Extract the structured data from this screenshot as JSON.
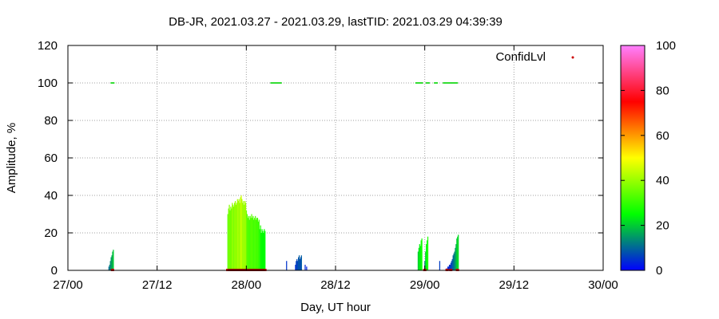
{
  "chart_data": {
    "type": "bar",
    "title": "DB-JR, 2021.03.27 - 2021.03.29, lastTID: 2021.03.29 04:39:39",
    "xlabel": "Day, UT hour",
    "ylabel": "Amplitude, %",
    "xlim": [
      0,
      72
    ],
    "ylim": [
      0,
      120
    ],
    "x_ticks": [
      {
        "value": 0,
        "label": "27/00"
      },
      {
        "value": 12,
        "label": "27/12"
      },
      {
        "value": 24,
        "label": "28/00"
      },
      {
        "value": 36,
        "label": "28/12"
      },
      {
        "value": 48,
        "label": "29/00"
      },
      {
        "value": 60,
        "label": "29/12"
      },
      {
        "value": 72,
        "label": "30/00"
      }
    ],
    "y_ticks": [
      0,
      20,
      40,
      60,
      80,
      100,
      120
    ],
    "grid": true,
    "legend": {
      "label": "ConfidLvl",
      "position": "top-right"
    },
    "colorbar": {
      "range": [
        0,
        100
      ],
      "ticks": [
        0,
        20,
        40,
        60,
        80,
        100
      ],
      "colors": [
        "#0000ff",
        "#00ff00",
        "#ffff00",
        "#ff0000",
        "#ff80ff"
      ]
    },
    "series": [
      {
        "type": "bar",
        "points": [
          [
            5.5,
            2
          ],
          [
            5.6,
            3
          ],
          [
            5.7,
            5
          ],
          [
            5.8,
            7
          ],
          [
            5.9,
            8
          ],
          [
            6.0,
            10
          ],
          [
            6.1,
            11
          ],
          [
            21.5,
            30
          ],
          [
            21.6,
            33
          ],
          [
            21.7,
            35
          ],
          [
            21.8,
            32
          ],
          [
            21.9,
            34
          ],
          [
            22.0,
            33
          ],
          [
            22.1,
            36
          ],
          [
            22.2,
            35
          ],
          [
            22.3,
            34
          ],
          [
            22.4,
            36
          ],
          [
            22.5,
            37
          ],
          [
            22.6,
            35
          ],
          [
            22.7,
            36
          ],
          [
            22.8,
            38
          ],
          [
            22.9,
            37
          ],
          [
            23.0,
            38
          ],
          [
            23.1,
            36
          ],
          [
            23.2,
            39
          ],
          [
            23.3,
            40
          ],
          [
            23.4,
            38
          ],
          [
            23.5,
            36
          ],
          [
            23.6,
            37
          ],
          [
            23.7,
            35
          ],
          [
            23.8,
            37
          ],
          [
            23.9,
            36
          ],
          [
            24.0,
            32
          ],
          [
            24.1,
            30
          ],
          [
            24.2,
            28
          ],
          [
            24.3,
            29
          ],
          [
            24.4,
            27
          ],
          [
            24.5,
            29
          ],
          [
            24.6,
            28
          ],
          [
            24.7,
            30
          ],
          [
            24.8,
            28
          ],
          [
            24.9,
            29
          ],
          [
            25.0,
            27
          ],
          [
            25.1,
            28
          ],
          [
            25.2,
            29
          ],
          [
            25.3,
            27
          ],
          [
            25.4,
            28
          ],
          [
            25.5,
            28
          ],
          [
            25.6,
            26
          ],
          [
            25.7,
            27
          ],
          [
            25.8,
            22
          ],
          [
            25.9,
            24
          ],
          [
            26.0,
            20
          ],
          [
            26.1,
            22
          ],
          [
            26.2,
            21
          ],
          [
            26.3,
            20
          ],
          [
            26.4,
            22
          ],
          [
            26.5,
            21
          ],
          [
            29.4,
            5
          ],
          [
            30.6,
            3
          ],
          [
            30.7,
            5
          ],
          [
            30.8,
            6
          ],
          [
            30.9,
            5
          ],
          [
            31.0,
            7
          ],
          [
            31.1,
            8
          ],
          [
            31.2,
            6
          ],
          [
            31.3,
            7
          ],
          [
            31.4,
            8
          ],
          [
            31.9,
            3
          ],
          [
            32.1,
            2
          ],
          [
            47.1,
            10
          ],
          [
            47.2,
            12
          ],
          [
            47.3,
            14
          ],
          [
            47.4,
            13
          ],
          [
            47.5,
            16
          ],
          [
            47.6,
            17
          ],
          [
            48.0,
            5
          ],
          [
            48.1,
            10
          ],
          [
            48.2,
            14
          ],
          [
            48.3,
            16
          ],
          [
            48.4,
            18
          ],
          [
            50.0,
            5
          ],
          [
            50.9,
            1
          ],
          [
            51.0,
            1
          ],
          [
            51.1,
            2
          ],
          [
            51.2,
            2
          ],
          [
            51.3,
            3
          ],
          [
            51.4,
            3
          ],
          [
            51.5,
            4
          ],
          [
            51.6,
            5
          ],
          [
            51.7,
            6
          ],
          [
            51.8,
            8
          ],
          [
            51.9,
            9
          ],
          [
            52.0,
            10
          ],
          [
            52.1,
            12
          ],
          [
            52.2,
            14
          ],
          [
            52.3,
            17
          ],
          [
            52.4,
            18
          ],
          [
            52.5,
            19
          ]
        ],
        "confidence": [
          10,
          12,
          14,
          15,
          16,
          18,
          20,
          34,
          36,
          38,
          35,
          37,
          36,
          40,
          38,
          37,
          39,
          40,
          38,
          39,
          42,
          40,
          41,
          39,
          43,
          45,
          42,
          40,
          41,
          39,
          41,
          40,
          36,
          34,
          32,
          33,
          31,
          33,
          32,
          34,
          32,
          33,
          31,
          32,
          33,
          31,
          32,
          32,
          30,
          31,
          26,
          28,
          24,
          26,
          25,
          24,
          26,
          25,
          5,
          4,
          6,
          7,
          6,
          8,
          9,
          7,
          8,
          9,
          4,
          3,
          20,
          22,
          24,
          23,
          26,
          27,
          12,
          20,
          24,
          26,
          28,
          6,
          3,
          3,
          4,
          4,
          5,
          5,
          6,
          7,
          8,
          10,
          11,
          13,
          15,
          17,
          20,
          21,
          22
        ]
      },
      {
        "type": "scatter",
        "name": "ConfidLvl",
        "points": [
          [
            6,
            100
          ],
          [
            27.5,
            100
          ],
          [
            28,
            100
          ],
          [
            28.5,
            100
          ],
          [
            47,
            100
          ],
          [
            47.5,
            100
          ],
          [
            48.4,
            100
          ],
          [
            49.5,
            100
          ],
          [
            50.7,
            100
          ],
          [
            51.0,
            100
          ],
          [
            51.3,
            100
          ],
          [
            51.6,
            100
          ],
          [
            51.9,
            100
          ],
          [
            52.2,
            100
          ]
        ]
      },
      {
        "type": "baseline",
        "points": [
          [
            6.0,
            0
          ],
          [
            21.5,
            0
          ],
          [
            22,
            0
          ],
          [
            23,
            0
          ],
          [
            24,
            0
          ],
          [
            25,
            0
          ],
          [
            26,
            0
          ],
          [
            26.5,
            0
          ],
          [
            48,
            0
          ],
          [
            51,
            0
          ],
          [
            51.5,
            0
          ],
          [
            52.4,
            0
          ]
        ]
      }
    ]
  }
}
